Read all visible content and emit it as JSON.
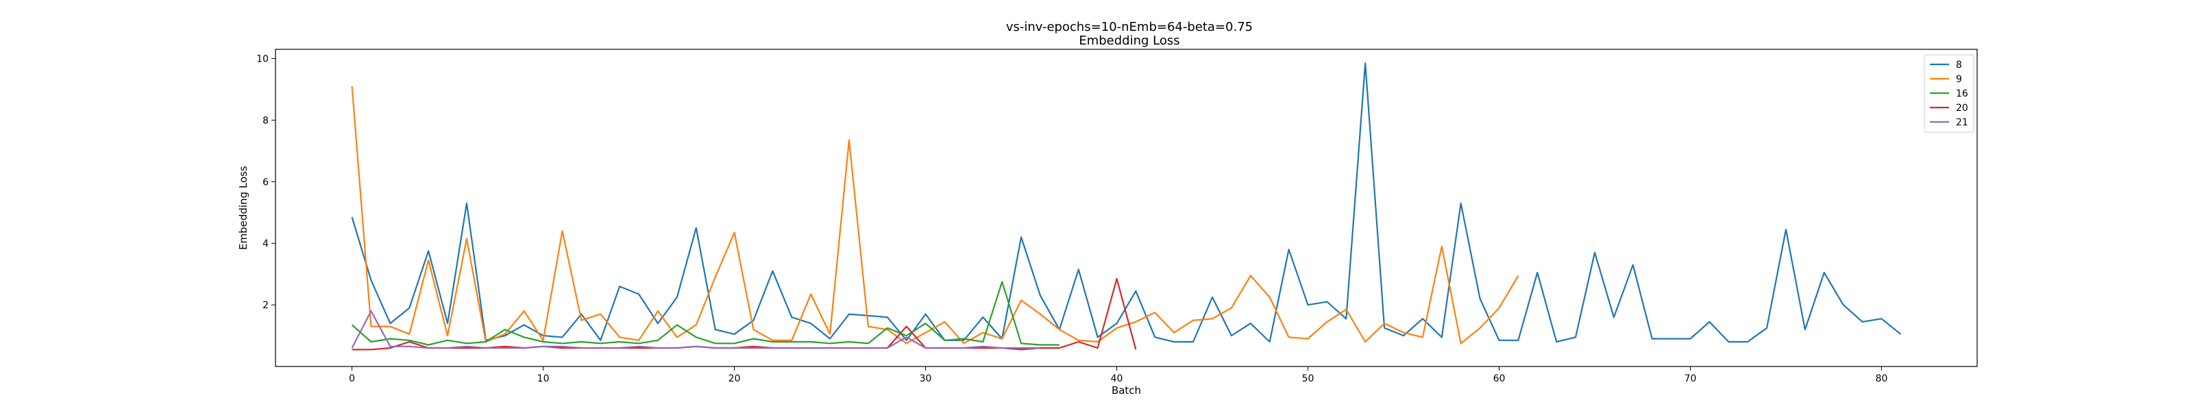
{
  "chart_data": {
    "type": "line",
    "title": "vs-inv-epochs=10-nEmb=64-beta=0.75",
    "subtitle": "Embedding Loss",
    "xlabel": "Batch",
    "ylabel": "Embedding Loss",
    "xlim": [
      -4,
      85
    ],
    "ylim": [
      0,
      10.3
    ],
    "xticks": [
      0,
      10,
      20,
      30,
      40,
      50,
      60,
      70,
      80
    ],
    "yticks": [
      2,
      4,
      6,
      8,
      10
    ],
    "grid": false,
    "legend": "top-right",
    "series": [
      {
        "name": "8",
        "color": "#1f77b4",
        "values": [
          4.85,
          2.8,
          1.4,
          1.9,
          3.75,
          1.4,
          5.3,
          0.85,
          1.0,
          1.35,
          1.0,
          0.95,
          1.7,
          0.85,
          2.6,
          2.35,
          1.4,
          2.25,
          4.5,
          1.2,
          1.05,
          1.5,
          3.1,
          1.6,
          1.4,
          0.9,
          1.7,
          1.65,
          1.6,
          0.85,
          1.7,
          0.85,
          0.85,
          1.6,
          0.9,
          4.2,
          2.3,
          1.2,
          3.15,
          0.95,
          1.4,
          2.45,
          0.95,
          0.8,
          0.8,
          2.25,
          1.0,
          1.4,
          0.8,
          3.8,
          2.0,
          2.1,
          1.55,
          9.85,
          1.25,
          1.0,
          1.55,
          0.95,
          5.3,
          2.2,
          0.85,
          0.85,
          3.05,
          0.8,
          0.95,
          3.7,
          1.6,
          3.3,
          0.9,
          0.9,
          0.9,
          1.45,
          0.8,
          0.8,
          1.25,
          4.45,
          1.2,
          3.05,
          2.0,
          1.45,
          1.55,
          1.05
        ]
      },
      {
        "name": "9",
        "color": "#ff7f0e",
        "values": [
          9.1,
          1.3,
          1.3,
          1.05,
          3.45,
          1.0,
          4.15,
          0.8,
          1.05,
          1.8,
          0.85,
          4.4,
          1.5,
          1.7,
          0.95,
          0.85,
          1.8,
          0.95,
          1.35,
          2.9,
          4.35,
          1.2,
          0.85,
          0.85,
          2.35,
          1.05,
          7.35,
          1.3,
          1.2,
          0.75,
          1.1,
          1.45,
          0.75,
          1.1,
          0.9,
          2.15,
          1.7,
          1.2,
          0.85,
          0.8,
          1.25,
          1.45,
          1.75,
          1.1,
          1.5,
          1.55,
          1.9,
          2.95,
          2.25,
          0.95,
          0.9,
          1.45,
          1.85,
          0.8,
          1.4,
          1.1,
          0.95,
          3.9,
          0.75,
          1.25,
          1.9,
          2.95
        ]
      },
      {
        "name": "16",
        "color": "#2ca02c",
        "values": [
          1.35,
          0.8,
          0.9,
          0.85,
          0.7,
          0.85,
          0.75,
          0.8,
          1.2,
          0.95,
          0.8,
          0.75,
          0.8,
          0.75,
          0.8,
          0.75,
          0.85,
          1.35,
          0.95,
          0.75,
          0.75,
          0.9,
          0.8,
          0.8,
          0.8,
          0.75,
          0.8,
          0.75,
          1.25,
          1.0,
          1.4,
          0.85,
          0.9,
          0.8,
          2.75,
          0.75,
          0.7,
          0.7
        ]
      },
      {
        "name": "20",
        "color": "#d62728",
        "values": [
          0.55,
          0.55,
          0.6,
          0.8,
          0.6,
          0.6,
          0.6,
          0.6,
          0.65,
          0.6,
          0.65,
          0.6,
          0.6,
          0.6,
          0.6,
          0.6,
          0.6,
          0.6,
          0.65,
          0.6,
          0.6,
          0.65,
          0.6,
          0.6,
          0.6,
          0.6,
          0.6,
          0.6,
          0.6,
          1.3,
          0.6,
          0.6,
          0.6,
          0.6,
          0.6,
          0.55,
          0.6,
          0.6,
          0.8,
          0.6,
          2.85,
          0.55
        ]
      },
      {
        "name": "21",
        "color": "#9467bd",
        "values": [
          0.6,
          1.8,
          0.65,
          0.65,
          0.6,
          0.6,
          0.65,
          0.6,
          0.6,
          0.6,
          0.65,
          0.65,
          0.6,
          0.6,
          0.6,
          0.65,
          0.6,
          0.6,
          0.65,
          0.6,
          0.6,
          0.6,
          0.6,
          0.6,
          0.6,
          0.6,
          0.6,
          0.6,
          0.6,
          0.95,
          0.6,
          0.6,
          0.6,
          0.65,
          0.6,
          0.6,
          0.6
        ]
      }
    ]
  }
}
